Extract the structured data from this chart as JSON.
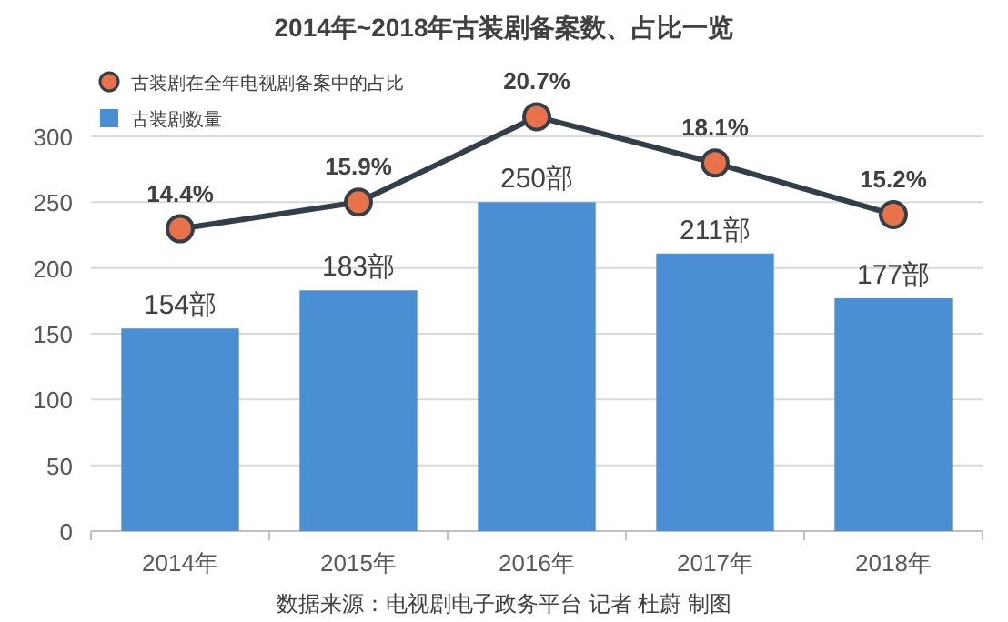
{
  "chart_data": {
    "type": "bar",
    "title": "2014年~2018年古装剧备案数、占比一览",
    "categories": [
      "2014年",
      "2015年",
      "2016年",
      "2017年",
      "2018年"
    ],
    "series": [
      {
        "name": "古装剧在全年电视剧备案中的占比",
        "type": "line",
        "axis": "y2",
        "color": "#e8734a",
        "marker": "circle",
        "values": [
          14.4,
          15.9,
          20.7,
          18.1,
          15.2
        ],
        "value_labels": [
          "14.4%",
          "15.9%",
          "20.7%",
          "18.1%",
          "15.2%"
        ]
      },
      {
        "name": "古装剧数量",
        "color": "#4a8fd4",
        "values": [
          154,
          183,
          250,
          211,
          177
        ],
        "value_labels": [
          "154部",
          "183部",
          "250部",
          "211部",
          "177部"
        ]
      }
    ],
    "ylim": [
      0,
      300
    ],
    "yticks": [
      0,
      50,
      100,
      150,
      200,
      250,
      300
    ],
    "grid": "y",
    "legend": "top left",
    "annotations": [
      "数据来源：电视剧电子政务平台 记者 杜蔚 制图"
    ]
  }
}
